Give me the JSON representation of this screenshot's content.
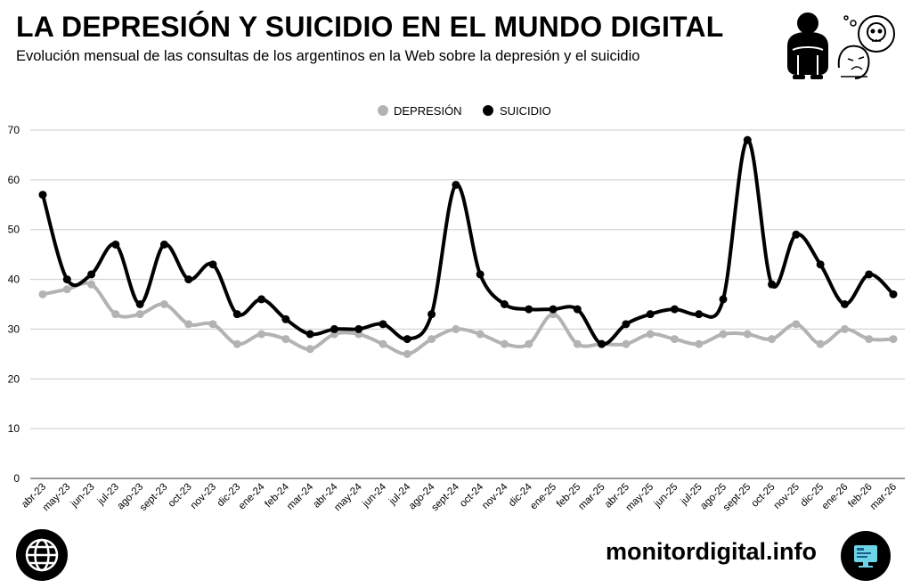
{
  "header": {
    "title": "LA DEPRESIÓN Y SUICIDIO EN EL MUNDO DIGITAL",
    "subtitle": "Evolución mensual de las consultas de los argentinos en la Web sobre la depresión y el suicidio"
  },
  "icons": {
    "person": "sad-person-icon",
    "face": "sad-face-skull-thought-icon",
    "globe": "globe-icon",
    "monitor": "monitor-icon"
  },
  "footer": {
    "site": "monitordigital.info"
  },
  "colors": {
    "depresion": "#b3b3b3",
    "suicidio": "#000000",
    "grid": "#cccccc"
  },
  "chart_data": {
    "type": "line",
    "title": "",
    "xlabel": "",
    "ylabel": "",
    "ylim": [
      0,
      70
    ],
    "yticks": [
      0,
      10,
      20,
      30,
      40,
      50,
      60,
      70
    ],
    "grid": true,
    "legend_position": "top-center",
    "categories": [
      "abr-23",
      "may-23",
      "jun-23",
      "jul-23",
      "ago-23",
      "sept-23",
      "oct-23",
      "nov-23",
      "dic-23",
      "ene-24",
      "feb-24",
      "mar-24",
      "abr-24",
      "may-24",
      "jun-24",
      "jul-24",
      "ago-24",
      "sept-24",
      "oct-24",
      "nov-24",
      "dic-24",
      "ene-25",
      "feb-25",
      "mar-25",
      "abr-25",
      "may-25",
      "jun-25",
      "jul-25",
      "ago-25",
      "sept-25",
      "oct-25",
      "nov-25",
      "dic-25",
      "ene-26",
      "feb-26",
      "mar-26"
    ],
    "series": [
      {
        "name": "DEPRESIÓN",
        "color": "#b3b3b3",
        "values": [
          37,
          38,
          39,
          33,
          33,
          35,
          31,
          31,
          27,
          29,
          28,
          26,
          29,
          29,
          27,
          25,
          28,
          30,
          29,
          27,
          27,
          33,
          27,
          27,
          27,
          29,
          28,
          27,
          29,
          29,
          28,
          31,
          27,
          30,
          28,
          28
        ]
      },
      {
        "name": "SUICIDIO",
        "color": "#000000",
        "values": [
          57,
          40,
          41,
          47,
          35,
          47,
          40,
          43,
          33,
          36,
          32,
          29,
          30,
          30,
          31,
          28,
          33,
          59,
          41,
          35,
          34,
          34,
          34,
          27,
          31,
          33,
          34,
          33,
          36,
          68,
          39,
          49,
          43,
          35,
          41,
          37
        ]
      }
    ]
  }
}
